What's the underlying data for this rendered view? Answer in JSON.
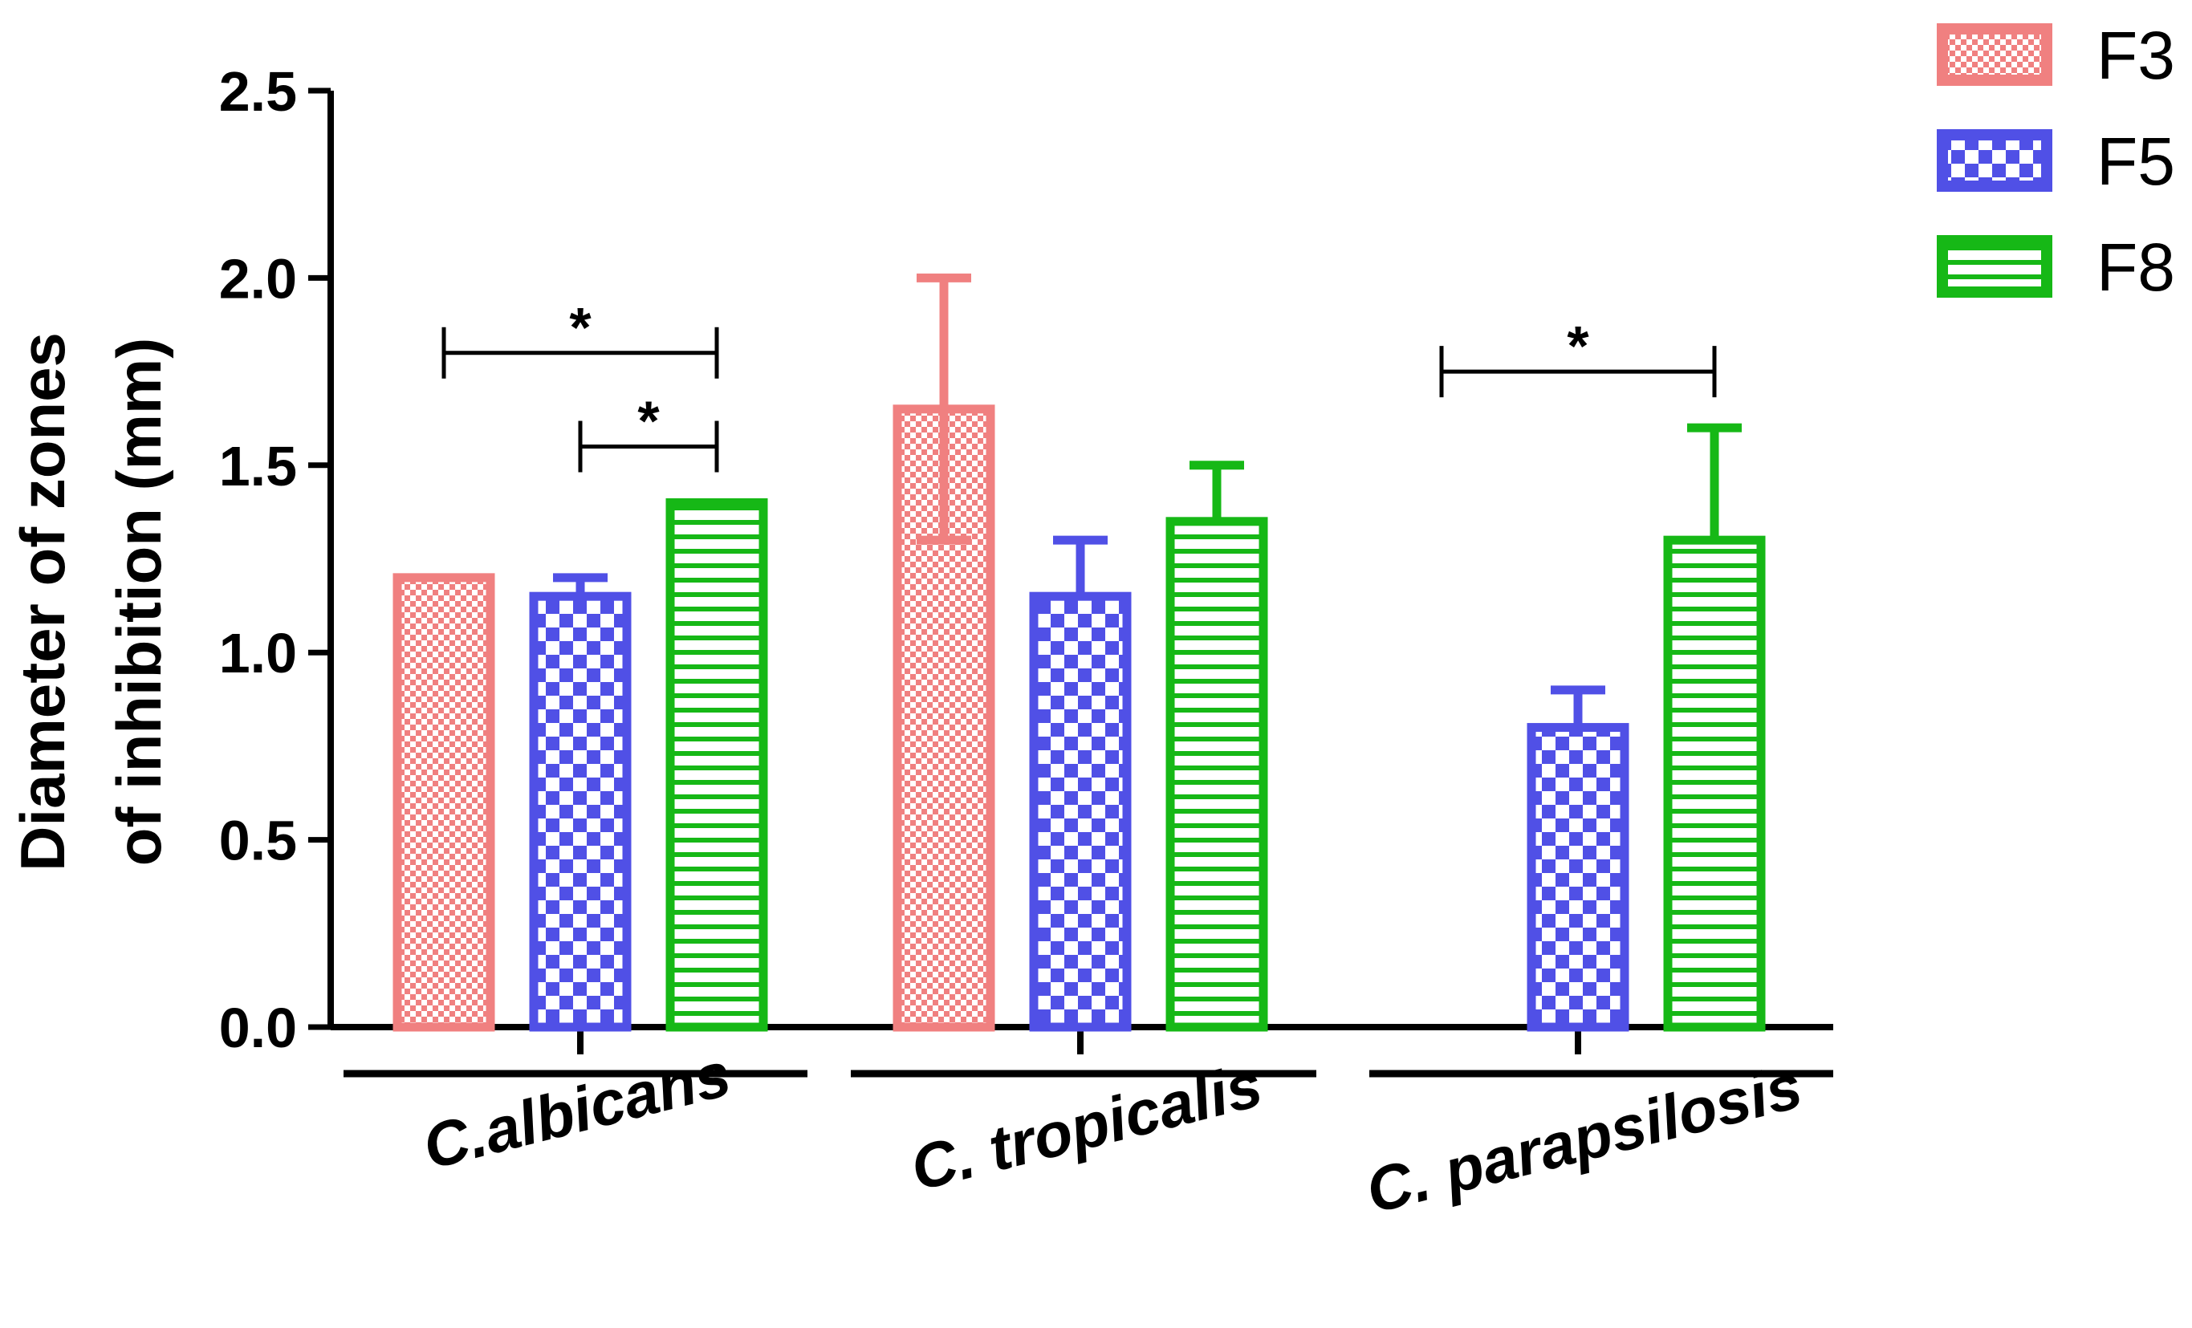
{
  "chart_data": {
    "type": "bar",
    "title": "",
    "ylabel": [
      "Diameter of zones",
      "of inhibition (mm)"
    ],
    "xlabel": "",
    "ylim": [
      0,
      2.5
    ],
    "yticks": [
      "0.0",
      "0.5",
      "1.0",
      "1.5",
      "2.0",
      "2.5"
    ],
    "grid": false,
    "legend_position": "top-right",
    "categories": [
      "C.albicans",
      "C. tropicalis",
      "C. parapsilosis"
    ],
    "series": [
      {
        "name": "F3",
        "color": "#f08080",
        "pattern": "checker-fine",
        "values": [
          1.2,
          1.65,
          null
        ],
        "error_upper": [
          null,
          2.0,
          null
        ],
        "error_lower": [
          null,
          1.3,
          null
        ]
      },
      {
        "name": "F5",
        "color": "#5050e6",
        "pattern": "checker-coarse",
        "values": [
          1.15,
          1.15,
          0.8
        ],
        "error_upper": [
          1.2,
          1.3,
          0.9
        ],
        "error_lower": [
          null,
          null,
          null
        ]
      },
      {
        "name": "F8",
        "color": "#16b816",
        "pattern": "horizontal-stripes",
        "values": [
          1.4,
          1.35,
          1.3
        ],
        "error_upper": [
          null,
          1.5,
          1.6
        ],
        "error_lower": [
          null,
          null,
          null
        ]
      }
    ],
    "significance": [
      {
        "category": 0,
        "from": 0,
        "to": 2,
        "y": 1.8,
        "label": "*"
      },
      {
        "category": 0,
        "from": 1,
        "to": 2,
        "y": 1.55,
        "label": "*"
      },
      {
        "category": 2,
        "from": 0,
        "to": 2,
        "y": 1.75,
        "label": "*"
      }
    ]
  }
}
